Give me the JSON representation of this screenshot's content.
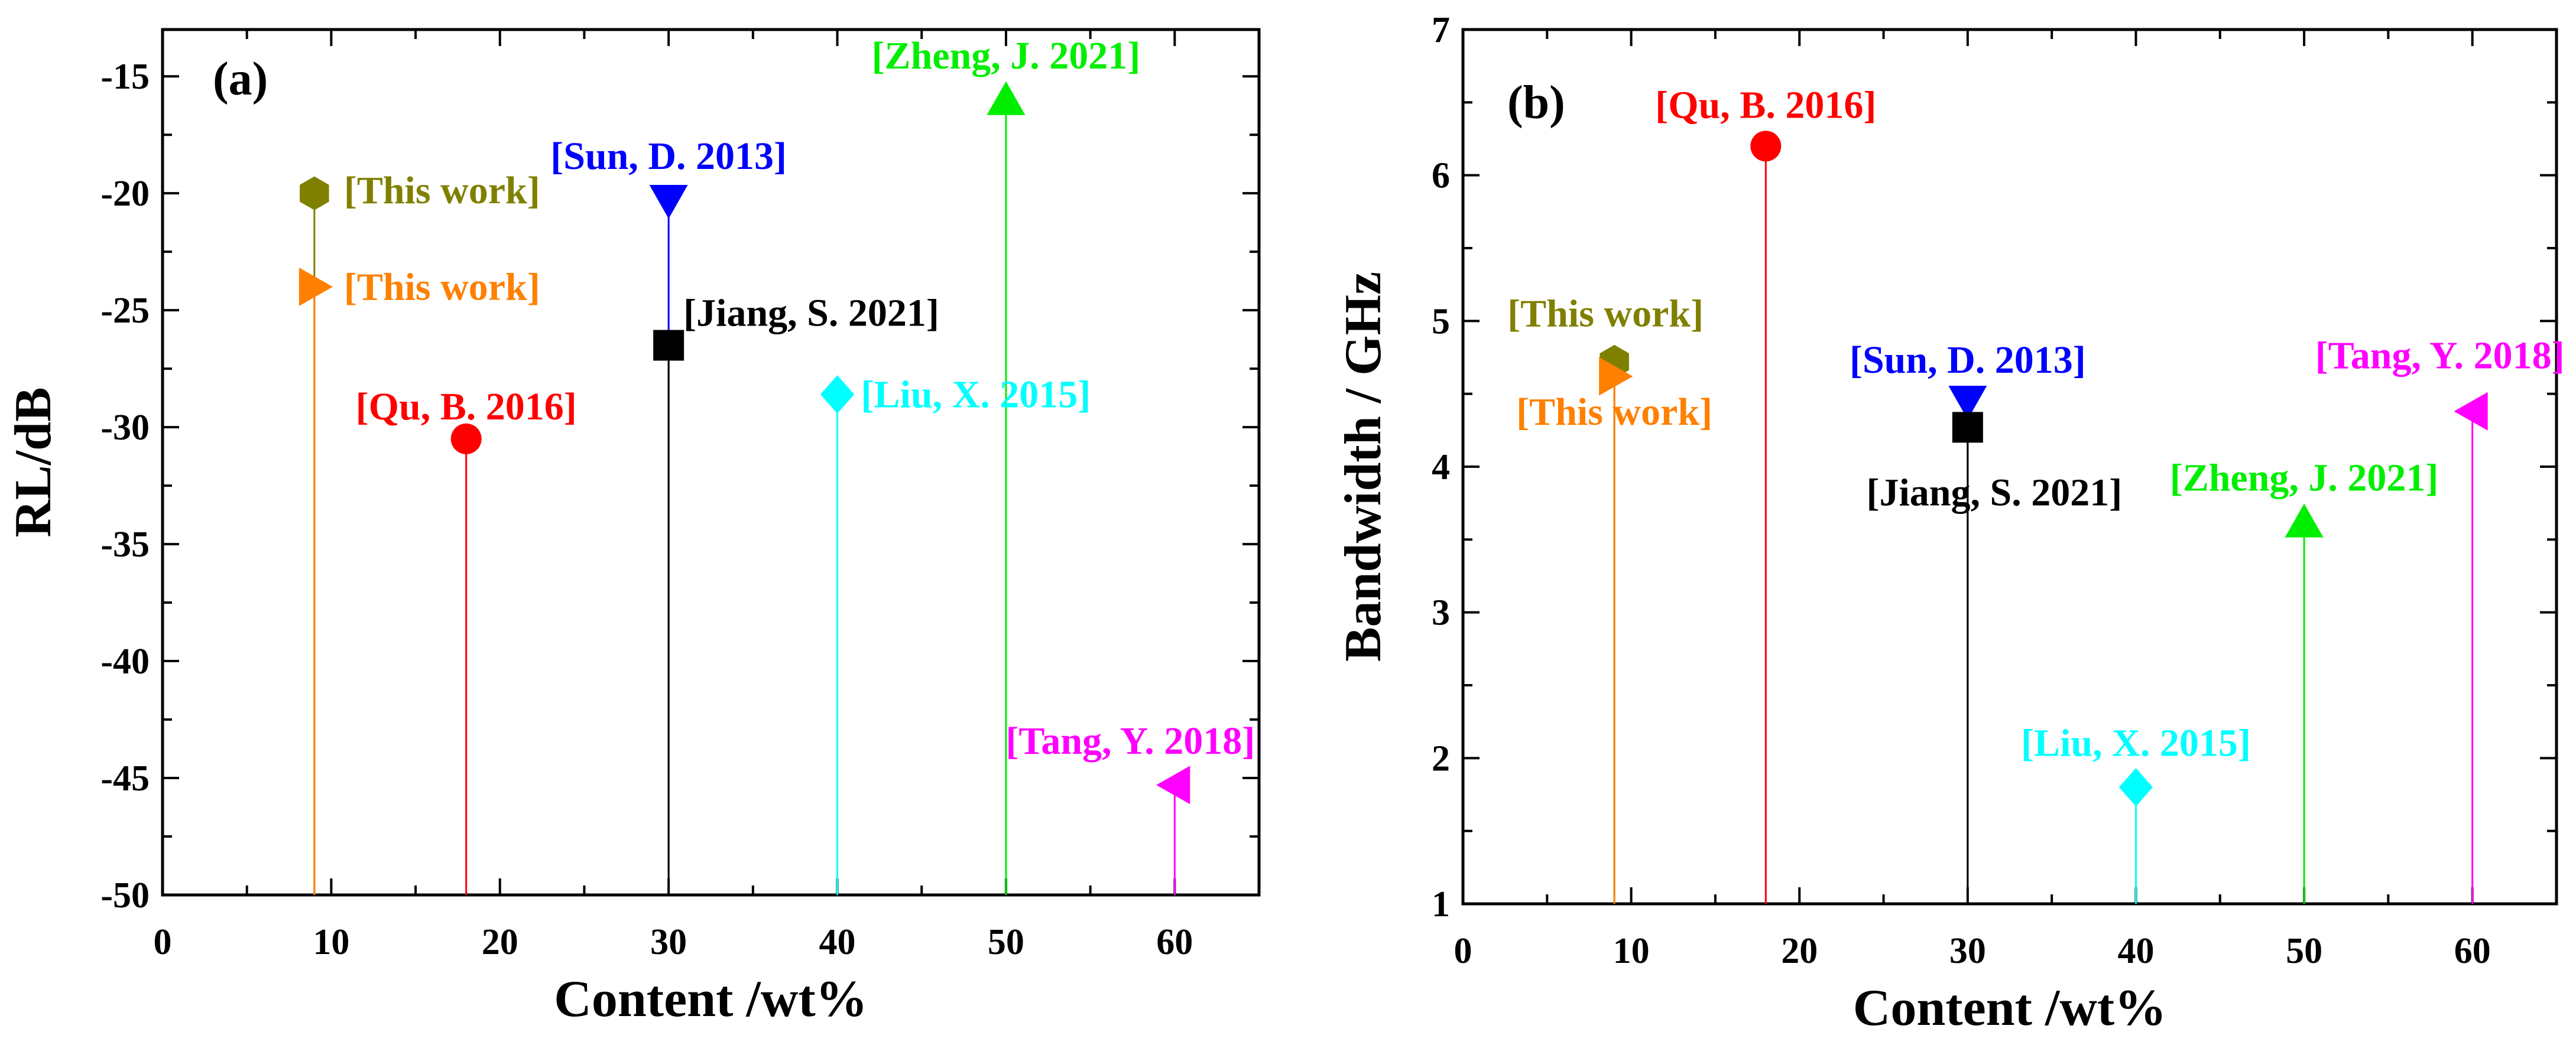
{
  "chart_data": [
    {
      "panel": "(a)",
      "type": "scatter",
      "style": "stem",
      "xlabel": "Content /wt%",
      "ylabel": "RL/dB",
      "xlim": [
        0,
        65
      ],
      "ylim": [
        -50,
        -13
      ],
      "xticks": [
        0,
        10,
        20,
        30,
        40,
        50,
        60
      ],
      "yticks": [
        -50,
        -45,
        -40,
        -35,
        -30,
        -25,
        -20,
        -15
      ],
      "points": [
        {
          "name": "This work",
          "label": "[This work]",
          "x": 9,
          "y": -20,
          "marker": "hexagon",
          "color": "#808000",
          "label_pos": "right"
        },
        {
          "name": "This work",
          "label": "[This work]",
          "x": 9,
          "y": -24,
          "marker": "triangle-right",
          "color": "#ff8000",
          "label_pos": "right"
        },
        {
          "name": "Qu, B. 2016",
          "label": "[Qu, B. 2016]",
          "x": 18,
          "y": -30.5,
          "marker": "circle",
          "color": "#ff0000",
          "label_pos": "top"
        },
        {
          "name": "Sun, D. 2013",
          "label": "[Sun, D. 2013]",
          "x": 30,
          "y": -20.3,
          "marker": "triangle-down",
          "color": "#0000ff",
          "label_pos": "top"
        },
        {
          "name": "Jiang, S. 2021",
          "label": "[Jiang, S. 2021]",
          "x": 30,
          "y": -26.5,
          "marker": "square",
          "color": "#000000",
          "label_pos": "top-right"
        },
        {
          "name": "Liu, X. 2015",
          "label": "[Liu, X. 2015]",
          "x": 40,
          "y": -28.6,
          "marker": "diamond",
          "color": "#00ffff",
          "label_pos": "right"
        },
        {
          "name": "Zheng, J. 2021",
          "label": "[Zheng, J. 2021]",
          "x": 50,
          "y": -16,
          "marker": "triangle-up",
          "color": "#00ee00",
          "label_pos": "top"
        },
        {
          "name": "Tang, Y. 2018",
          "label": "[Tang, Y. 2018]",
          "x": 60,
          "y": -45.3,
          "marker": "triangle-left",
          "color": "#ff00ff",
          "label_pos": "top"
        }
      ]
    },
    {
      "panel": "(b)",
      "type": "scatter",
      "style": "stem",
      "xlabel": "Content /wt%",
      "ylabel": "Bandwidth / GHz",
      "xlim": [
        0,
        65
      ],
      "ylim": [
        1,
        7
      ],
      "xticks": [
        0,
        10,
        20,
        30,
        40,
        50,
        60
      ],
      "yticks": [
        1,
        2,
        3,
        4,
        5,
        6,
        7
      ],
      "points": [
        {
          "name": "This work",
          "label": "[This work]",
          "x": 9,
          "y": 4.72,
          "marker": "hexagon",
          "color": "#808000",
          "label_pos": "top"
        },
        {
          "name": "This work",
          "label": "[This work]",
          "x": 9,
          "y": 4.62,
          "marker": "triangle-right",
          "color": "#ff8000",
          "label_pos": "bottom"
        },
        {
          "name": "Qu, B. 2016",
          "label": "[Qu, B. 2016]",
          "x": 18,
          "y": 6.2,
          "marker": "circle",
          "color": "#ff0000",
          "label_pos": "top"
        },
        {
          "name": "Sun, D. 2013",
          "label": "[Sun, D. 2013]",
          "x": 30,
          "y": 4.45,
          "marker": "triangle-down",
          "color": "#0000ff",
          "label_pos": "top"
        },
        {
          "name": "Jiang, S. 2021",
          "label": "[Jiang, S. 2021]",
          "x": 30,
          "y": 4.27,
          "marker": "square",
          "color": "#000000",
          "label_pos": "bottom"
        },
        {
          "name": "Liu, X. 2015",
          "label": "[Liu, X. 2015]",
          "x": 40,
          "y": 1.8,
          "marker": "diamond",
          "color": "#00ffff",
          "label_pos": "top"
        },
        {
          "name": "Zheng, J. 2021",
          "label": "[Zheng, J. 2021]",
          "x": 50,
          "y": 3.62,
          "marker": "triangle-up",
          "color": "#00ee00",
          "label_pos": "top"
        },
        {
          "name": "Tang, Y. 2018",
          "label": "[Tang, Y. 2018]",
          "x": 60,
          "y": 4.38,
          "marker": "triangle-left",
          "color": "#ff00ff",
          "label_pos": "top"
        }
      ]
    }
  ]
}
